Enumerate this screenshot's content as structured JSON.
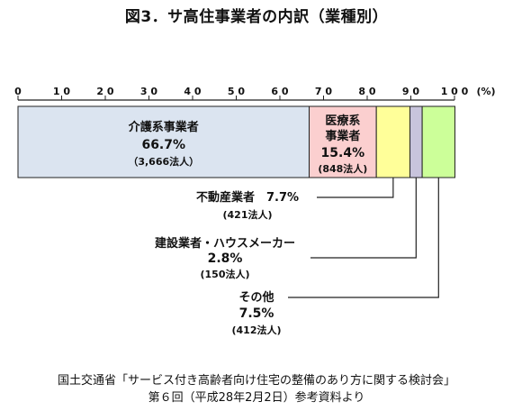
{
  "chart_data": {
    "type": "bar",
    "orientation": "horizontal-stacked-100",
    "title": "図3．サ高住事業者の内訳（業種別）",
    "axis": {
      "ticks": [
        "0",
        "10",
        "20",
        "30",
        "40",
        "50",
        "60",
        "70",
        "80",
        "90",
        "100"
      ],
      "unit": "(%)",
      "range": [
        0,
        100
      ]
    },
    "segments": [
      {
        "name": "介護系事業者",
        "name_lines": [
          "介護系事業者"
        ],
        "percent_label": "66.7%",
        "count_label": "（3,666法人）",
        "value": 66.7,
        "color": "#dbe4f0"
      },
      {
        "name": "医療系事業者",
        "name_lines": [
          "医療系",
          "事業者"
        ],
        "percent_label": "15.4%",
        "count_label": "(848法人)",
        "value": 15.4,
        "color": "#fbcfcf"
      },
      {
        "name": "不動産業者",
        "name_lines": [
          "不動産業者"
        ],
        "percent_label": "7.7%",
        "count_label": "(421法人)",
        "value": 7.7,
        "color": "#ffff99"
      },
      {
        "name": "建設業者・ハウスメーカー",
        "name_lines": [
          "建設業者・ハウスメーカー"
        ],
        "percent_label": "2.8%",
        "count_label": "(150法人)",
        "value": 2.8,
        "color": "#c8c4dc"
      },
      {
        "name": "その他",
        "name_lines": [
          "その他"
        ],
        "percent_label": "7.5%",
        "count_label": "(412法人)",
        "value": 7.5,
        "color": "#ccff99"
      }
    ],
    "grid": false
  },
  "source": {
    "line1": "国土交通省「サービス付き高齢者向け住宅の整備のあり方に関する検討会」",
    "line2": "第６回（平成28年2月2日）参考資料より"
  }
}
